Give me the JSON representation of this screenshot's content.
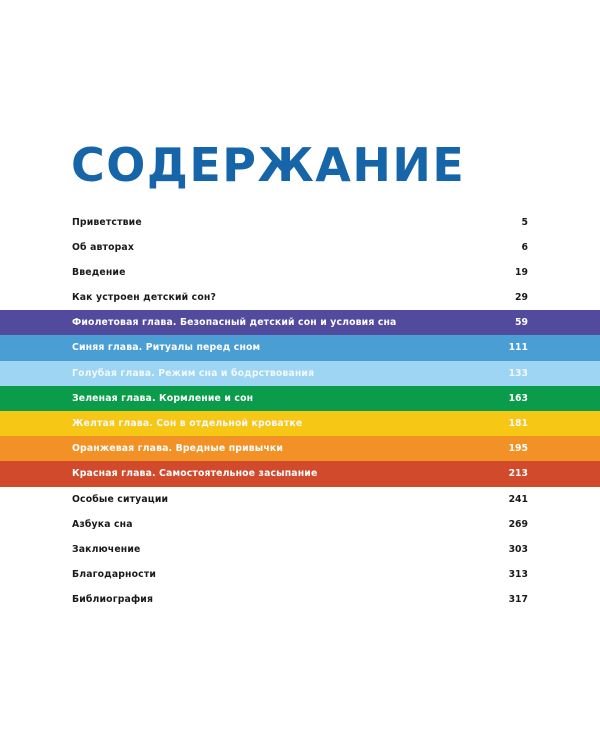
{
  "page": {
    "title": "СОДЕРЖАНИЕ",
    "title_color": "#1565a8"
  },
  "toc": {
    "entries": [
      {
        "label": "Приветствие",
        "page": "5",
        "color": null
      },
      {
        "label": "Об авторах",
        "page": "6",
        "color": null
      },
      {
        "label": "Введение",
        "page": "19",
        "color": null
      },
      {
        "label": "Как устроен детский сон?",
        "page": "29",
        "color": null
      },
      {
        "label": "Фиолетовая глава. Безопасный детский сон и условия сна",
        "page": "59",
        "color": "#524a9c"
      },
      {
        "label": "Синяя глава. Ритуалы перед сном",
        "page": "111",
        "color": "#4a9ed4"
      },
      {
        "label": "Голубая глава. Режим сна и бодрствования",
        "page": "133",
        "color": "#9dd5f3"
      },
      {
        "label": "Зеленая глава. Кормление и сон",
        "page": "163",
        "color": "#0a9c4a"
      },
      {
        "label": "Желтая глава. Сон в отдельной кроватке",
        "page": "181",
        "color": "#f7c716"
      },
      {
        "label": "Оранжевая глава. Вредные привычки",
        "page": "195",
        "color": "#f29125"
      },
      {
        "label": "Красная глава. Самостоятельное засыпание",
        "page": "213",
        "color": "#d04a2b"
      },
      {
        "label": "Особые ситуации",
        "page": "241",
        "color": null
      },
      {
        "label": "Азбука сна",
        "page": "269",
        "color": null
      },
      {
        "label": "Заключение",
        "page": "303",
        "color": null
      },
      {
        "label": "Благодарности",
        "page": "313",
        "color": null
      },
      {
        "label": "Библиография",
        "page": "317",
        "color": null
      }
    ]
  }
}
